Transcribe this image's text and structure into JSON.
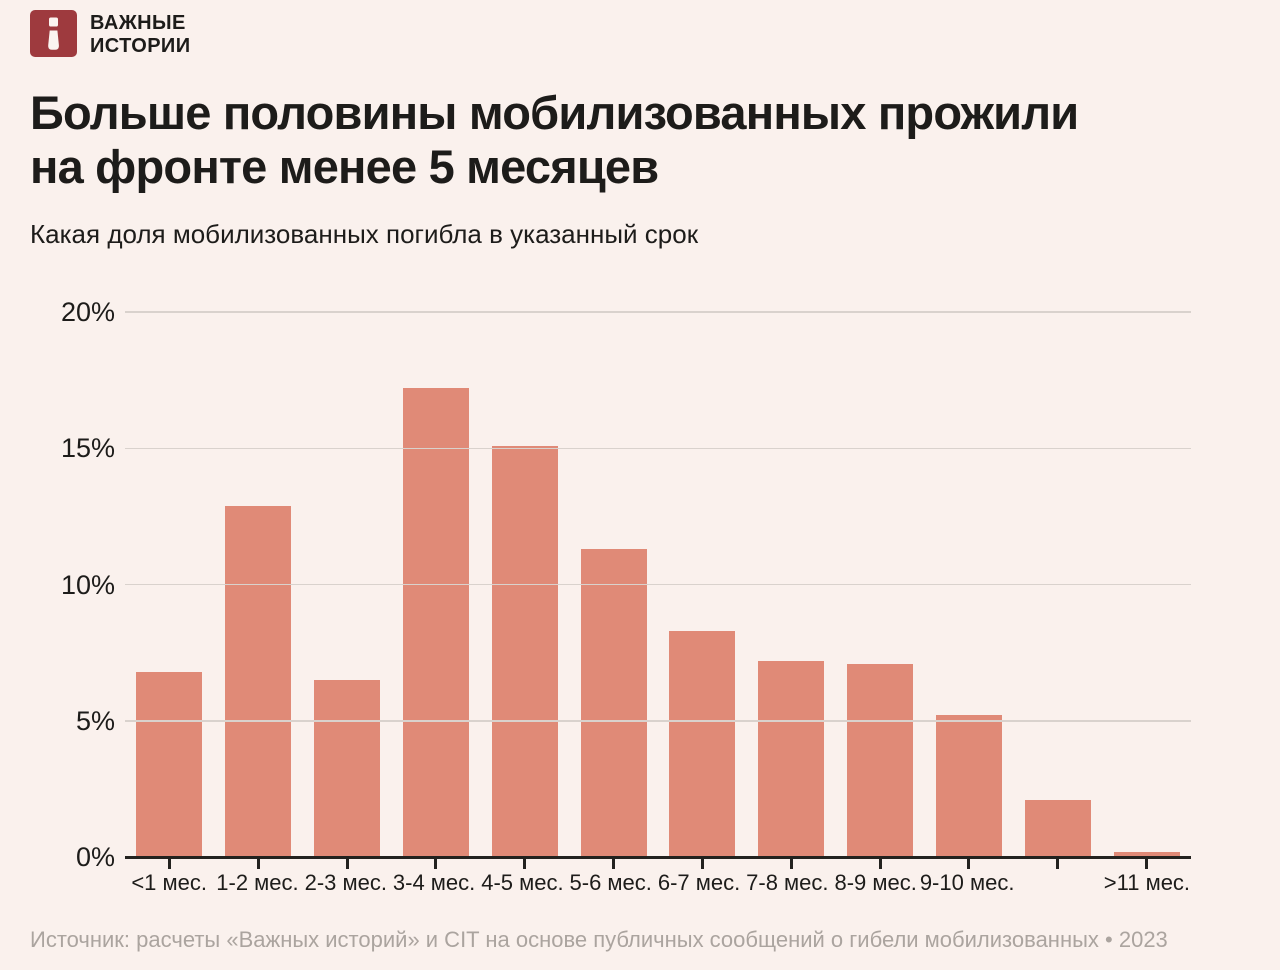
{
  "brand": {
    "line1": "ВАЖНЫЕ",
    "line2": "ИСТОРИИ",
    "logo_letter": "i"
  },
  "header": {
    "title_lines": [
      "Больше половины мобилизованных прожили",
      "на фронте менее 5 месяцев"
    ],
    "subtitle": "Какая доля мобилизованных погибла в указанный срок"
  },
  "chart_data": {
    "type": "bar",
    "title": "Больше половины мобилизованных прожили на фронте менее 5 месяцев",
    "subtitle": "Какая доля мобилизованных погибла в указанный срок",
    "categories": [
      "<1 мес.",
      "1-2 мес.",
      "2-3 мес.",
      "3-4 мес.",
      "4-5 мес.",
      "5-6 мес.",
      "6-7 мес.",
      "7-8 мес.",
      "8-9 мес.",
      "9-10 мес.",
      "",
      ">11 мес."
    ],
    "values": [
      6.8,
      12.9,
      6.5,
      17.2,
      15.1,
      11.3,
      8.3,
      7.2,
      7.1,
      5.2,
      2.1,
      0.2
    ],
    "unit": "%",
    "xlabel": "",
    "ylabel": "",
    "ylim": [
      0,
      20
    ],
    "yticks": [
      0,
      5,
      10,
      15,
      20
    ],
    "ytick_labels": [
      "0%",
      "5%",
      "10%",
      "15%",
      "20%"
    ],
    "grid": true,
    "legend": false
  },
  "footer": {
    "source": "Источник: расчеты «Важных историй» и CIT на основе публичных сообщений о гибели мобилизованных • 2023"
  },
  "colors": {
    "background": "#faf1ed",
    "bar": "#e08a77",
    "grid": "#d9d2cd",
    "axis": "#23221f",
    "text": "#1d1c1a",
    "source_text": "#aba49f",
    "logo": "#9e3a3e"
  }
}
